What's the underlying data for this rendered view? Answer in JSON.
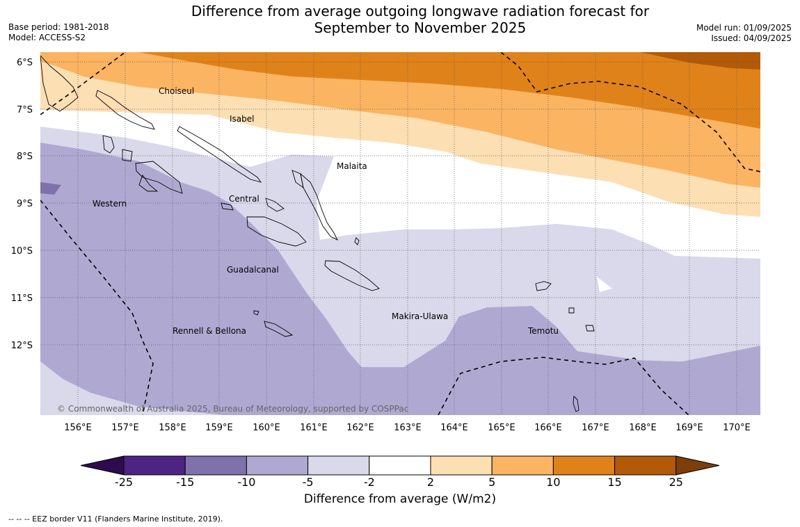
{
  "header": {
    "title_line1": "Difference from average outgoing longwave radiation forecast for",
    "title_line2": "September to November 2025",
    "base_period": "Base period: 1981-2018",
    "model": "Model: ACCESS-S2",
    "model_run": "Model run: 01/09/2025",
    "issued": "Issued: 04/09/2025"
  },
  "map": {
    "lat_labels": [
      "6°S",
      "7°S",
      "8°S",
      "9°S",
      "10°S",
      "11°S",
      "12°S"
    ],
    "lon_labels": [
      "156°E",
      "157°E",
      "158°E",
      "159°E",
      "160°E",
      "161°E",
      "162°E",
      "163°E",
      "164°E",
      "165°E",
      "166°E",
      "167°E",
      "168°E",
      "169°E",
      "170°E"
    ],
    "region_labels": [
      "Choiseul",
      "Isabel",
      "Malaita",
      "Central",
      "Western",
      "Guadalcanal",
      "Makira-Ulawa",
      "Rennell & Bellona",
      "Temotu"
    ],
    "copyright": "© Commonwealth of Australia 2025, Bureau of Meteorology, supported by COSPPac"
  },
  "colorbar": {
    "ticks": [
      "-25",
      "-15",
      "-10",
      "-5",
      "-2",
      "2",
      "5",
      "10",
      "15",
      "25"
    ],
    "colors": [
      "#4d2384",
      "#7f72ab",
      "#afa9d2",
      "#d9d9eb",
      "#ffffff",
      "#fddfb4",
      "#fbb462",
      "#e0821a",
      "#b25a08"
    ],
    "extend_low_color": "#2e0b4d",
    "extend_high_color": "#7e3e0a",
    "label": "Difference from average (W/m2)"
  },
  "legend": {
    "eez_note": "--  --  -- EEZ border V11 (Flanders Marine Institute, 2019)."
  }
}
